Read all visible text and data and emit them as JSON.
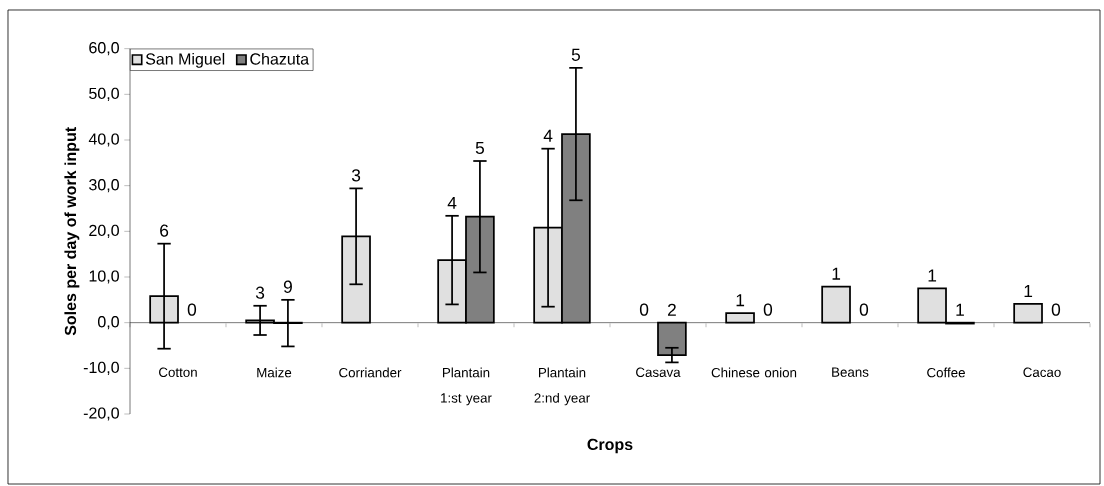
{
  "chart_data": {
    "type": "bar",
    "xlabel": "Crops",
    "ylabel": "Soles per day of work input",
    "categories": [
      "Cotton",
      "Maize",
      "Corriander",
      "Plantain 1:st year",
      "Plantain 2:nd year",
      "Casava",
      "Chinese onion",
      "Beans",
      "Coffee",
      "Cacao"
    ],
    "series": [
      {
        "name": "San Miguel",
        "color": "#e0e0e0",
        "values": [
          5.8,
          0.5,
          18.9,
          13.7,
          20.8,
          null,
          2.1,
          7.9,
          7.5,
          4.1
        ],
        "errors": [
          11.5,
          3.2,
          10.5,
          9.7,
          17.3,
          null,
          null,
          null,
          null,
          null
        ]
      },
      {
        "name": "Chazuta",
        "color": "#808080",
        "values": [
          null,
          -0.1,
          null,
          23.2,
          41.3,
          -7.1,
          null,
          null,
          -0.2,
          null
        ],
        "errors": [
          null,
          5.1,
          null,
          12.2,
          14.5,
          1.6,
          null,
          null,
          null,
          null
        ]
      }
    ],
    "annotations": [
      "6",
      "0",
      "3",
      "9",
      "3",
      null,
      "4",
      "5",
      "4",
      "5",
      "0",
      "2",
      "1",
      "0",
      "1",
      "0",
      "1",
      "1",
      "1",
      "0"
    ],
    "ylim": [
      -20,
      60
    ],
    "yticks": [
      {
        "value": -20,
        "label": "-20,0"
      },
      {
        "value": -10,
        "label": "-10,0"
      },
      {
        "value": 0,
        "label": "0,0"
      },
      {
        "value": 10,
        "label": "10,0"
      },
      {
        "value": 20,
        "label": "20,0"
      },
      {
        "value": 30,
        "label": "30,0"
      },
      {
        "value": 40,
        "label": "40,0"
      },
      {
        "value": 50,
        "label": "50,0"
      },
      {
        "value": 60,
        "label": "60,0"
      }
    ],
    "legend": "top left"
  }
}
